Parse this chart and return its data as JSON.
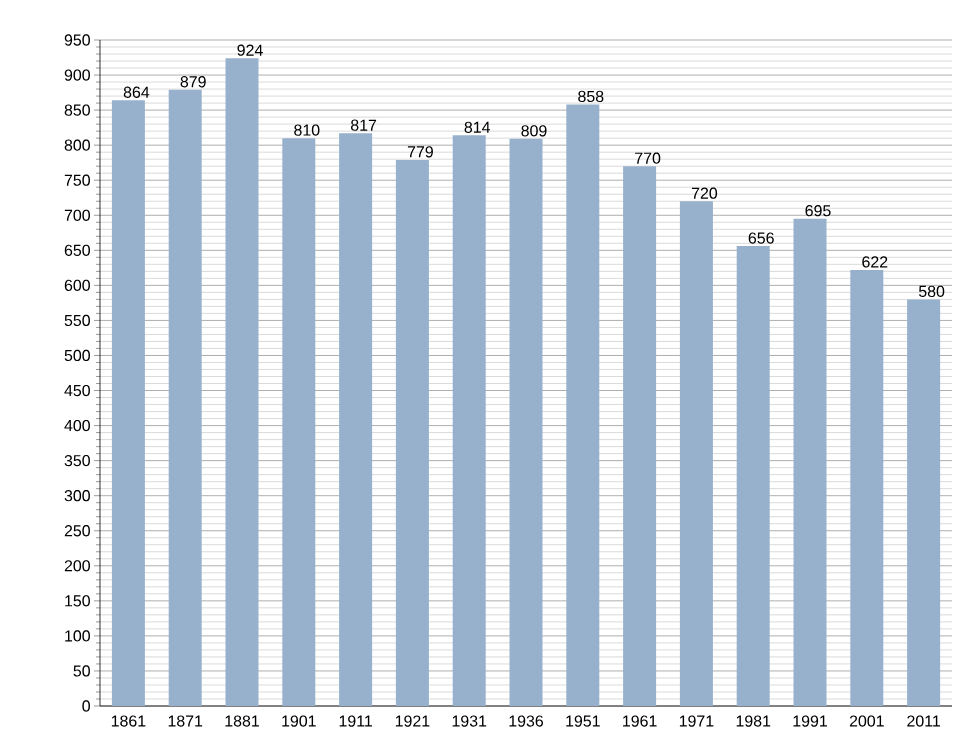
{
  "chart_data": {
    "type": "bar",
    "categories": [
      "1861",
      "1871",
      "1881",
      "1901",
      "1911",
      "1921",
      "1931",
      "1936",
      "1951",
      "1961",
      "1971",
      "1981",
      "1991",
      "2001",
      "2011"
    ],
    "values": [
      864,
      879,
      924,
      810,
      817,
      779,
      814,
      809,
      858,
      770,
      720,
      656,
      695,
      622,
      580
    ],
    "color": "#97b0cc",
    "ylim": [
      0,
      950
    ],
    "yticks": [
      0,
      50,
      100,
      150,
      200,
      250,
      300,
      350,
      400,
      450,
      500,
      550,
      600,
      650,
      700,
      750,
      800,
      850,
      900,
      950
    ],
    "grid": "y",
    "data_labels": true
  }
}
